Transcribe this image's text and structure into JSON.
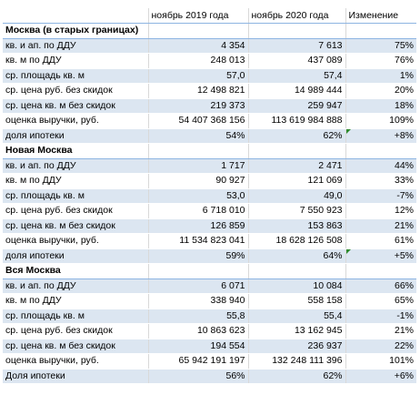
{
  "header": {
    "label": "",
    "col_2019": "ноябрь 2019 года",
    "col_2020": "ноябрь 2020 года",
    "col_change": "Изменение"
  },
  "sections": [
    {
      "title": "Москва (в старых границах)",
      "rows": [
        {
          "label": "кв. и ап. по ДДУ",
          "v2019": "4 354",
          "v2020": "7 613",
          "change": "75%"
        },
        {
          "label": "кв. м по ДДУ",
          "v2019": "248 013",
          "v2020": "437 089",
          "change": "76%"
        },
        {
          "label": "ср. площадь кв. м",
          "v2019": "57,0",
          "v2020": "57,4",
          "change": "1%"
        },
        {
          "label": "ср. цена руб. без скидок",
          "v2019": "12 498 821",
          "v2020": "14 989 444",
          "change": "20%"
        },
        {
          "label": "ср. цена кв. м без скидок",
          "v2019": "219 373",
          "v2020": "259 947",
          "change": "18%"
        },
        {
          "label": "оценка выручки, руб.",
          "v2019": "54 407 368 156",
          "v2020": "113 619 984 888",
          "change": "109%"
        },
        {
          "label": "доля ипотеки",
          "v2019": "54%",
          "v2020": "62%",
          "change": "+8%"
        }
      ]
    },
    {
      "title": "Новая Москва",
      "rows": [
        {
          "label": "кв. и ап. по ДДУ",
          "v2019": "1 717",
          "v2020": "2 471",
          "change": "44%"
        },
        {
          "label": "кв. м по ДДУ",
          "v2019": "90 927",
          "v2020": "121 069",
          "change": "33%"
        },
        {
          "label": "ср. площадь кв. м",
          "v2019": "53,0",
          "v2020": "49,0",
          "change": "-7%"
        },
        {
          "label": "ср. цена руб. без скидок",
          "v2019": "6 718 010",
          "v2020": "7 550 923",
          "change": "12%"
        },
        {
          "label": "ср. цена кв. м без скидок",
          "v2019": "126 859",
          "v2020": "153 863",
          "change": "21%"
        },
        {
          "label": "оценка выручки, руб.",
          "v2019": "11 534 823 041",
          "v2020": "18 628 126 508",
          "change": "61%"
        },
        {
          "label": "доля ипотеки",
          "v2019": "59%",
          "v2020": "64%",
          "change": "+5%"
        }
      ]
    },
    {
      "title": "Вся Москва",
      "rows": [
        {
          "label": "кв. и ап. по ДДУ",
          "v2019": "6 071",
          "v2020": "10 084",
          "change": "66%"
        },
        {
          "label": "кв. м по ДДУ",
          "v2019": "338 940",
          "v2020": "558 158",
          "change": "65%"
        },
        {
          "label": "ср. площадь кв. м",
          "v2019": "55,8",
          "v2020": "55,4",
          "change": "-1%"
        },
        {
          "label": "ср. цена руб. без скидок",
          "v2019": "10 863 623",
          "v2020": "13 162 945",
          "change": "21%"
        },
        {
          "label": "ср. цена кв. м без скидок",
          "v2019": "194 554",
          "v2020": "236 937",
          "change": "22%"
        },
        {
          "label": "оценка выручки, руб.",
          "v2019": "65 942 191 197",
          "v2020": "132 248 111 396",
          "change": "101%"
        },
        {
          "label": "Доля ипотеки",
          "v2019": "56%",
          "v2020": "62%",
          "change": "+6%"
        }
      ]
    }
  ],
  "colors": {
    "stripe": "#dce6f1",
    "border": "#8db4e2",
    "error_flag": "#2e8b2e"
  }
}
